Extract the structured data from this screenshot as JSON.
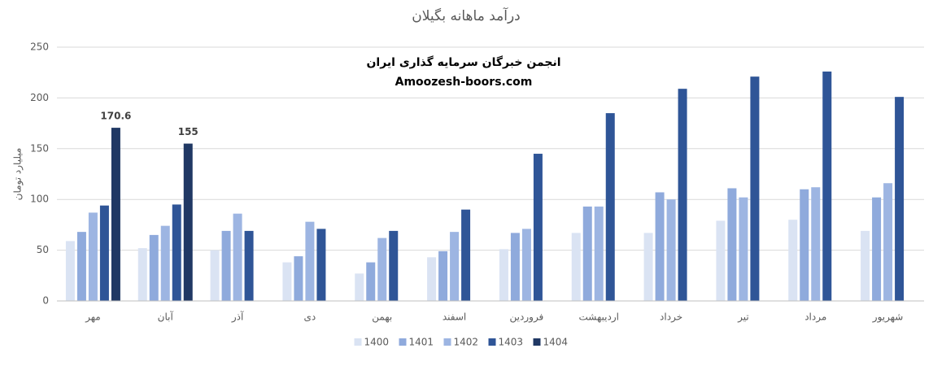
{
  "chart_data": {
    "type": "bar",
    "title": "درآمد ماهانه بگیلان",
    "y_label": "میلیارد تومان",
    "annotations": [
      "انجمن خبرگان سرمایه گذاری ایران",
      "Amoozesh-boors.com"
    ],
    "categories": [
      "مهر",
      "آبان",
      "آذر",
      "دی",
      "بهمن",
      "اسفند",
      "فروردین",
      "اردیبهشت",
      "خرداد",
      "تیر",
      "مرداد",
      "شهریور"
    ],
    "series": [
      {
        "name": "1400",
        "color": "#dae3f3",
        "values": [
          59,
          52,
          50,
          38,
          27,
          43,
          51,
          67,
          67,
          79,
          80,
          69
        ]
      },
      {
        "name": "1401",
        "color": "#8faadc",
        "values": [
          68,
          65,
          69,
          44,
          38,
          49,
          67,
          93,
          107,
          111,
          110,
          102
        ]
      },
      {
        "name": "1402",
        "color": "#9db5e2",
        "values": [
          87,
          74,
          86,
          78,
          62,
          68,
          71,
          93,
          100,
          102,
          112,
          116
        ]
      },
      {
        "name": "1403",
        "color": "#2f5597",
        "values": [
          94,
          95,
          69,
          71,
          69,
          90,
          145,
          185,
          209,
          221,
          226,
          201
        ]
      },
      {
        "name": "1404",
        "color": "#203864",
        "data_labels": true,
        "values": [
          170.6,
          155,
          null,
          null,
          null,
          null,
          null,
          null,
          null,
          null,
          null,
          null
        ]
      }
    ],
    "ylim": [
      0,
      250
    ],
    "yticks": [
      0,
      50,
      100,
      150,
      200,
      250
    ],
    "grid": true,
    "legend": "bottom"
  }
}
